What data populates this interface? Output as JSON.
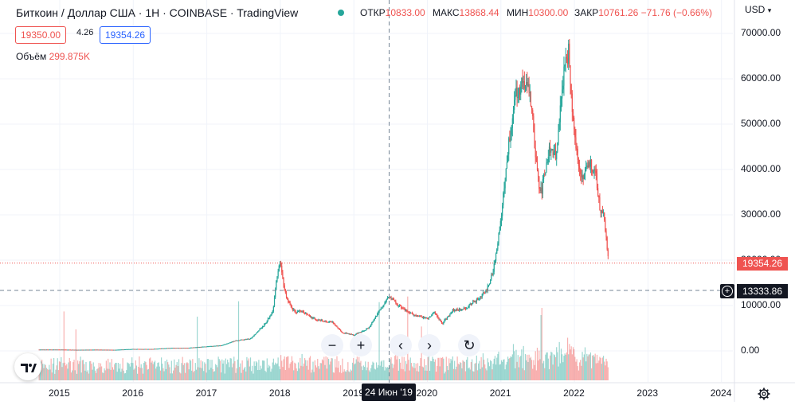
{
  "legend": {
    "title": "Биткоин / Доллар США · 1H · COINBASE · TradingView",
    "open_label": "ОТКР",
    "open_value": "10833.00",
    "high_label": "МАКС",
    "high_value": "13868.44",
    "low_label": "МИН",
    "low_value": "10300.00",
    "close_label": "ЗАКР",
    "close_value": "10761.26",
    "change_value": "−71.76 (−0.66%)",
    "bid": "19350.00",
    "spread": "4.26",
    "ask": "19354.26",
    "volume_label": "Объём",
    "volume_value": "299.875K"
  },
  "price_scale": {
    "currency": "USD",
    "ticks": [
      "70000.00",
      "60000.00",
      "50000.00",
      "40000.00",
      "30000.00",
      "20000.00",
      "10000.00",
      "0.00"
    ],
    "last_price_tag": "19354.26",
    "crosshair_price": "13333.86"
  },
  "time_scale": {
    "ticks": [
      "2015",
      "2016",
      "2017",
      "2018",
      "2019",
      "2020",
      "2021",
      "2022",
      "2023",
      "2024"
    ],
    "crosshair_date": "24 Июн '19"
  },
  "nav": {
    "zoom_out": "−",
    "zoom_in": "+",
    "scroll_left": "‹",
    "scroll_right": "›",
    "reset": "↻"
  },
  "colors": {
    "up": "#26a69a",
    "down": "#ef5350",
    "grid": "#f0f3fa",
    "crosshair": "#758696",
    "ask": "#2962ff"
  },
  "chart_data": {
    "type": "candlestick",
    "symbol": "BTC/USD",
    "ylim": [
      -5000,
      72000
    ],
    "xlim": [
      2014.6,
      2024.3
    ],
    "last_price": 19354.26,
    "crosshair": {
      "x": 2019.48,
      "y": 13333.86
    },
    "x": [
      2015.0,
      2015.25,
      2015.5,
      2015.75,
      2016.0,
      2016.25,
      2016.5,
      2016.75,
      2017.0,
      2017.2,
      2017.4,
      2017.5,
      2017.6,
      2017.7,
      2017.8,
      2017.9,
      2017.96,
      2018.0,
      2018.05,
      2018.1,
      2018.2,
      2018.3,
      2018.4,
      2018.5,
      2018.6,
      2018.7,
      2018.85,
      2018.95,
      2019.0,
      2019.2,
      2019.35,
      2019.48,
      2019.6,
      2019.8,
      2020.0,
      2020.1,
      2020.2,
      2020.35,
      2020.5,
      2020.65,
      2020.8,
      2020.9,
      2021.0,
      2021.05,
      2021.1,
      2021.2,
      2021.3,
      2021.4,
      2021.5,
      2021.55,
      2021.65,
      2021.75,
      2021.85,
      2021.92,
      2022.0,
      2022.1,
      2022.2,
      2022.3,
      2022.35,
      2022.4,
      2022.45,
      2022.47
    ],
    "close": [
      300,
      250,
      280,
      250,
      430,
      420,
      650,
      680,
      1000,
      1200,
      2300,
      2500,
      2700,
      4500,
      6000,
      9000,
      17000,
      19500,
      14000,
      11000,
      8500,
      9000,
      7500,
      6800,
      6500,
      6400,
      4000,
      3700,
      3500,
      5000,
      9000,
      12000,
      10000,
      8000,
      7200,
      8500,
      6000,
      9000,
      9200,
      11000,
      13000,
      18000,
      29000,
      37000,
      45000,
      57000,
      59000,
      57000,
      38000,
      35000,
      44000,
      43000,
      61000,
      66000,
      47000,
      38000,
      42000,
      38000,
      31000,
      30000,
      22000,
      19354
    ]
  }
}
